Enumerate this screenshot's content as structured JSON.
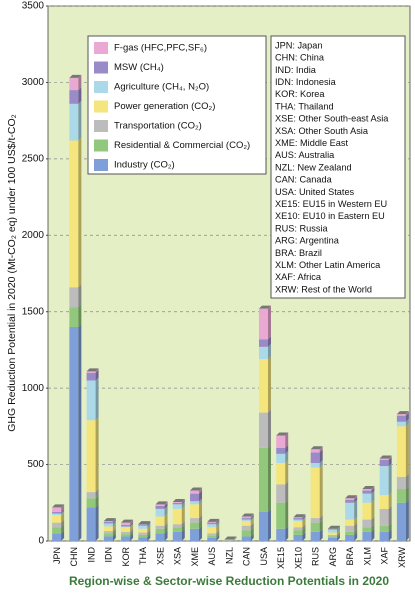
{
  "chart_data": {
    "type": "stacked-bar",
    "title": "Region-wise & Sector-wise Reduction Potentials in 2020",
    "y_label": "GHG Reduction Potential in 2020 (Mt-CO₂ eq) under 100 US$/t-CO₂",
    "categories": [
      "JPN",
      "CHN",
      "IND",
      "IDN",
      "KOR",
      "THA",
      "XSE",
      "XSA",
      "XME",
      "AUS",
      "NZL",
      "CAN",
      "USA",
      "XE15",
      "XE10",
      "RUS",
      "ARG",
      "BRA",
      "XLM",
      "XAF",
      "XRW"
    ],
    "series": [
      {
        "name": "Industry (CO₂)",
        "color": "#7f9fd8",
        "values": [
          50,
          1400,
          220,
          30,
          30,
          25,
          50,
          60,
          80,
          20,
          2,
          30,
          190,
          80,
          40,
          60,
          20,
          40,
          60,
          60,
          250
        ]
      },
      {
        "name": "Residential & Commercial (CO₂)",
        "color": "#92c87c",
        "values": [
          40,
          130,
          60,
          20,
          15,
          15,
          30,
          30,
          40,
          15,
          2,
          40,
          420,
          170,
          30,
          60,
          10,
          20,
          30,
          40,
          90
        ]
      },
      {
        "name": "Transportation (CO₂)",
        "color": "#bcbcbc",
        "values": [
          30,
          130,
          40,
          15,
          15,
          15,
          20,
          20,
          30,
          15,
          1,
          30,
          230,
          120,
          20,
          30,
          10,
          40,
          50,
          110,
          80
        ]
      },
      {
        "name": "Power generation (CO₂)",
        "color": "#f4e67c",
        "values": [
          50,
          960,
          470,
          30,
          30,
          25,
          60,
          100,
          90,
          40,
          1,
          30,
          350,
          140,
          40,
          330,
          15,
          40,
          110,
          90,
          330
        ]
      },
      {
        "name": "Agriculture (CH₄, N₂O)",
        "color": "#acd9e8",
        "values": [
          10,
          240,
          260,
          20,
          5,
          20,
          50,
          30,
          20,
          20,
          3,
          10,
          80,
          60,
          10,
          30,
          20,
          110,
          60,
          190,
          30
        ]
      },
      {
        "name": "MSW (CH₄)",
        "color": "#9a8bc8",
        "values": [
          10,
          90,
          50,
          10,
          10,
          10,
          20,
          10,
          50,
          10,
          1,
          10,
          50,
          40,
          10,
          70,
          5,
          20,
          20,
          40,
          40
        ]
      },
      {
        "name": "F-gas (HFC,PFC,SF₆)",
        "color": "#eaa9d2",
        "values": [
          30,
          80,
          10,
          5,
          15,
          0,
          10,
          5,
          20,
          5,
          0,
          10,
          200,
          80,
          5,
          20,
          0,
          10,
          10,
          10,
          10
        ]
      }
    ],
    "ylim": [
      0,
      3500
    ],
    "yticks": [
      0,
      500,
      1000,
      1500,
      2000,
      2500,
      3000,
      3500
    ],
    "grid": true,
    "region_key": [
      "JPN: Japan",
      "CHN: China",
      "IND: India",
      "IDN: Indonesia",
      "KOR: Korea",
      "THA: Thailand",
      "XSE: Other South-east Asia",
      "XSA: Other South Asia",
      "XME: Middle East",
      "AUS: Australia",
      "NZL: New Zealand",
      "CAN: Canada",
      "USA: United States",
      "XE15: EU15 in Western EU",
      "XE10: EU10 in Eastern EU",
      "RUS: Russia",
      "ARG: Argentina",
      "BRA: Brazil",
      "XLM: Other Latin America",
      "XAF: Africa",
      "XRW: Rest of the World"
    ]
  }
}
